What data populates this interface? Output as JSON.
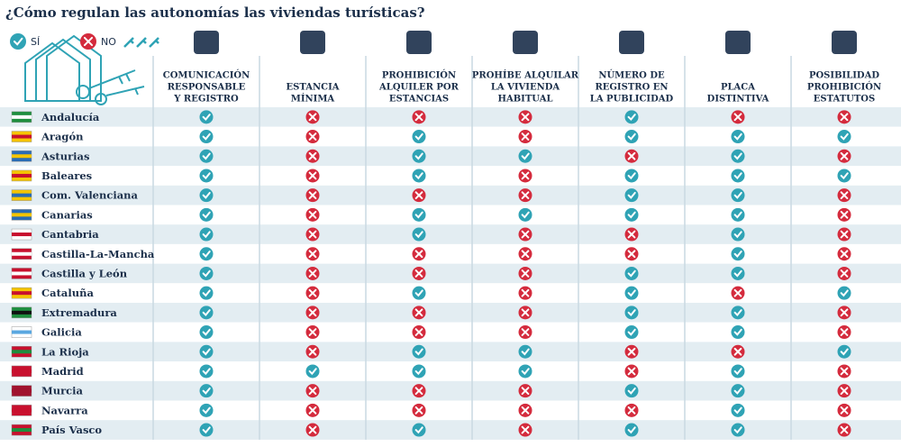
{
  "title": "¿Cómo regulan las autonomías las viviendas turísticas?",
  "legend": {
    "yes": "SÍ",
    "no": "NO"
  },
  "columns": [
    [
      "COMUNICACIÓN",
      "RESPONSABLE",
      "Y REGISTRO"
    ],
    [
      "ESTANCIA",
      "MÍNIMA"
    ],
    [
      "PROHIBICIÓN",
      "ALQUILER POR",
      "ESTANCIAS"
    ],
    [
      "PROHÍBE ALQUILAR",
      "LA VIVIENDA",
      "HABITUAL"
    ],
    [
      "NÚMERO DE",
      "REGISTRO EN",
      "LA PUBLICIDAD"
    ],
    [
      "PLACA",
      "DISTINTIVA"
    ],
    [
      "POSIBILIDAD",
      "PROHIBICIÓN",
      "ESTATUTOS"
    ]
  ],
  "rows": [
    {
      "name": "Andalucía",
      "values": [
        true,
        false,
        false,
        false,
        true,
        false,
        false
      ]
    },
    {
      "name": "Aragón",
      "values": [
        true,
        false,
        true,
        false,
        true,
        true,
        true
      ]
    },
    {
      "name": "Asturias",
      "values": [
        true,
        false,
        true,
        true,
        false,
        true,
        false
      ]
    },
    {
      "name": "Baleares",
      "values": [
        true,
        false,
        true,
        false,
        true,
        true,
        true
      ]
    },
    {
      "name": "Com. Valenciana",
      "values": [
        true,
        false,
        false,
        false,
        true,
        true,
        false
      ]
    },
    {
      "name": "Canarias",
      "values": [
        true,
        false,
        true,
        true,
        true,
        true,
        false
      ]
    },
    {
      "name": "Cantabria",
      "values": [
        true,
        false,
        true,
        false,
        false,
        true,
        false
      ]
    },
    {
      "name": "Castilla-La-Mancha",
      "values": [
        true,
        false,
        false,
        false,
        false,
        true,
        false
      ]
    },
    {
      "name": "Castilla y León",
      "values": [
        true,
        false,
        false,
        false,
        true,
        true,
        false
      ]
    },
    {
      "name": "Cataluña",
      "values": [
        true,
        false,
        true,
        false,
        true,
        false,
        true
      ]
    },
    {
      "name": "Extremadura",
      "values": [
        true,
        false,
        false,
        false,
        true,
        true,
        false
      ]
    },
    {
      "name": "Galicia",
      "values": [
        true,
        false,
        false,
        false,
        true,
        true,
        false
      ]
    },
    {
      "name": "La Rioja",
      "values": [
        true,
        false,
        true,
        true,
        false,
        false,
        true
      ]
    },
    {
      "name": "Madrid",
      "values": [
        true,
        true,
        true,
        true,
        false,
        true,
        false
      ]
    },
    {
      "name": "Murcia",
      "values": [
        true,
        false,
        false,
        false,
        true,
        true,
        false
      ]
    },
    {
      "name": "Navarra",
      "values": [
        true,
        false,
        false,
        false,
        false,
        true,
        false
      ]
    },
    {
      "name": "País Vasco",
      "values": [
        true,
        false,
        true,
        false,
        true,
        true,
        false
      ]
    }
  ]
}
